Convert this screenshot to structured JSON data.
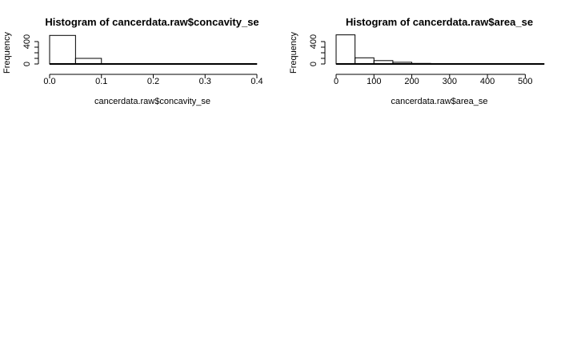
{
  "chart_data": [
    {
      "type": "bar",
      "title": "Histogram of cancerdata.raw$concavity_se",
      "xlabel": "cancerdata.raw$concavity_se",
      "ylabel": "Frequency",
      "xlim": [
        0,
        0.4
      ],
      "ylim": [
        0,
        550
      ],
      "x_ticks": [
        0.0,
        0.1,
        0.2,
        0.3,
        0.4
      ],
      "x_tick_labels": [
        "0.0",
        "0.1",
        "0.2",
        "0.3",
        "0.4"
      ],
      "y_ticks": [
        0,
        400
      ],
      "y_tick_labels": [
        "0",
        "400"
      ],
      "bins": [
        {
          "from": 0.0,
          "to": 0.05,
          "count": 510
        },
        {
          "from": 0.05,
          "to": 0.1,
          "count": 100
        },
        {
          "from": 0.1,
          "to": 0.15,
          "count": 6
        },
        {
          "from": 0.15,
          "to": 0.2,
          "count": 2
        },
        {
          "from": 0.2,
          "to": 0.25,
          "count": 0
        },
        {
          "from": 0.25,
          "to": 0.3,
          "count": 0
        },
        {
          "from": 0.3,
          "to": 0.35,
          "count": 0
        },
        {
          "from": 0.35,
          "to": 0.4,
          "count": 1
        }
      ]
    },
    {
      "type": "bar",
      "title": "Histogram of cancerdata.raw$area_se",
      "xlabel": "cancerdata.raw$area_se",
      "ylabel": "Frequency",
      "xlim": [
        0,
        550
      ],
      "ylim": [
        0,
        550
      ],
      "x_ticks": [
        0,
        100,
        200,
        300,
        400,
        500
      ],
      "x_tick_labels": [
        "0",
        "100",
        "200",
        "300",
        "400",
        "500"
      ],
      "y_ticks": [
        0,
        400
      ],
      "y_tick_labels": [
        "0",
        "400"
      ],
      "bins": [
        {
          "from": 0,
          "to": 50,
          "count": 520
        },
        {
          "from": 50,
          "to": 100,
          "count": 110
        },
        {
          "from": 100,
          "to": 150,
          "count": 60
        },
        {
          "from": 150,
          "to": 200,
          "count": 30
        },
        {
          "from": 200,
          "to": 250,
          "count": 10
        },
        {
          "from": 250,
          "to": 300,
          "count": 5
        },
        {
          "from": 300,
          "to": 350,
          "count": 3
        },
        {
          "from": 350,
          "to": 400,
          "count": 3
        },
        {
          "from": 400,
          "to": 450,
          "count": 2
        },
        {
          "from": 450,
          "to": 500,
          "count": 1
        },
        {
          "from": 500,
          "to": 550,
          "count": 1
        }
      ]
    }
  ]
}
